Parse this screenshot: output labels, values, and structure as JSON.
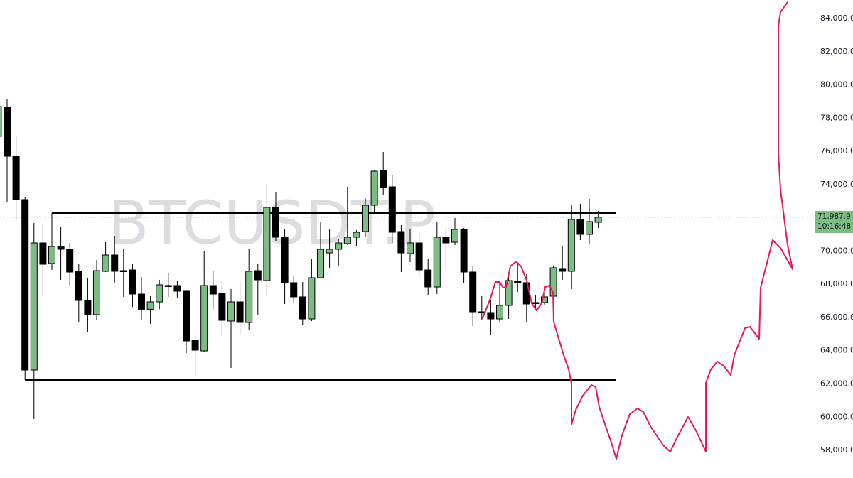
{
  "chart_data": {
    "type": "candlestick",
    "title": "",
    "watermark": "BTCUSDT.P",
    "ylim": [
      57000,
      85200
    ],
    "y_ticks": [
      "84,000.0",
      "82,000.0",
      "80,000.0",
      "78,000.0",
      "76,000.0",
      "74,000.0",
      "70,000.0",
      "68,000.0",
      "66,000.0",
      "64,000.0",
      "62,000.0",
      "60,000.0",
      "58,000.0"
    ],
    "y_tick_values": [
      84000,
      82000,
      80000,
      78000,
      76000,
      74000,
      70000,
      68000,
      66000,
      64000,
      62000,
      60000,
      58000
    ],
    "last_price": {
      "value": 71987.9,
      "label": "71,987.9",
      "countdown": "10:16:48"
    },
    "grid": false,
    "colors": {
      "up": "#7cbd83",
      "down": "#000000",
      "projection": "#e8185a",
      "last_price": "#7cbd83",
      "level_line": "#000000"
    },
    "levels": [
      {
        "price": 72241,
        "from_candle": 6,
        "to_candle": 69
      },
      {
        "price": 62192,
        "from_candle": 3,
        "to_candle": 69
      }
    ],
    "candles": [
      [
        76859,
        78869,
        76731,
        78655
      ],
      [
        78612,
        79083,
        72883,
        75662
      ],
      [
        75662,
        76902,
        71813,
        73054
      ],
      [
        73054,
        73225,
        62192,
        62791
      ],
      [
        62791,
        71642,
        59841,
        70445
      ],
      [
        70445,
        71599,
        67196,
        69162
      ],
      [
        69205,
        72241,
        68820,
        70231
      ],
      [
        70231,
        71386,
        68222,
        70060
      ],
      [
        70060,
        70445,
        67880,
        68692
      ],
      [
        68735,
        69205,
        65656,
        66982
      ],
      [
        66982,
        68307,
        65057,
        66127
      ],
      [
        66127,
        69419,
        65784,
        68777
      ],
      [
        68735,
        70488,
        68692,
        69718
      ],
      [
        69718,
        70873,
        68008,
        68735
      ],
      [
        68777,
        70060,
        67196,
        68735
      ],
      [
        68820,
        69162,
        66582,
        67366
      ],
      [
        67366,
        68393,
        65784,
        66451
      ],
      [
        66451,
        67238,
        65571,
        66896
      ],
      [
        66896,
        68222,
        66451,
        67922
      ],
      [
        67880,
        68649,
        67196,
        67837
      ],
      [
        67880,
        68136,
        67110,
        67538
      ],
      [
        67538,
        67580,
        63817,
        64544
      ],
      [
        64587,
        64929,
        62364,
        63988
      ],
      [
        63945,
        69932,
        63860,
        67880
      ],
      [
        67880,
        68777,
        66451,
        67366
      ],
      [
        67409,
        68136,
        64843,
        65784
      ],
      [
        65741,
        67666,
        62920,
        66896
      ],
      [
        66896,
        68136,
        64972,
        65656
      ],
      [
        65656,
        70060,
        65185,
        68735
      ],
      [
        68777,
        69162,
        66127,
        68222
      ],
      [
        68179,
        73951,
        67324,
        72583
      ],
      [
        72583,
        73481,
        70573,
        70787
      ],
      [
        70787,
        71300,
        66768,
        68051
      ],
      [
        68051,
        68478,
        66811,
        67196
      ],
      [
        67196,
        68093,
        65527,
        65870
      ],
      [
        65870,
        69462,
        65741,
        68350
      ],
      [
        68350,
        71685,
        68307,
        70060
      ],
      [
        69846,
        71258,
        68906,
        70060
      ],
      [
        70060,
        70702,
        69077,
        70445
      ],
      [
        70402,
        73823,
        70317,
        70787
      ],
      [
        70787,
        71215,
        70274,
        71086
      ],
      [
        71129,
        73138,
        70787,
        72711
      ],
      [
        72711,
        74807,
        72241,
        74764
      ],
      [
        74807,
        75918,
        73311,
        73780
      ],
      [
        73823,
        74550,
        70445,
        71086
      ],
      [
        71129,
        71514,
        68692,
        69846
      ],
      [
        69803,
        71300,
        69290,
        70445
      ],
      [
        70445,
        71001,
        68435,
        68820
      ],
      [
        68820,
        69504,
        67281,
        67794
      ],
      [
        67794,
        71728,
        67366,
        70787
      ],
      [
        70787,
        71300,
        68863,
        70445
      ],
      [
        70488,
        71942,
        70317,
        71258
      ],
      [
        71258,
        71343,
        68051,
        68692
      ],
      [
        68692,
        69077,
        65442,
        66297
      ],
      [
        66297,
        67238,
        65827,
        66255
      ],
      [
        66255,
        67024,
        64886,
        65870
      ],
      [
        65870,
        68051,
        65699,
        66682
      ],
      [
        66682,
        68478,
        65870,
        68179
      ],
      [
        68136,
        69248,
        67495,
        68051
      ],
      [
        68051,
        68564,
        65656,
        66768
      ],
      [
        66854,
        67281,
        66426,
        66811
      ],
      [
        66854,
        67623,
        66682,
        67196
      ],
      [
        67238,
        69034,
        66768,
        68949
      ],
      [
        68863,
        70274,
        68222,
        68735
      ],
      [
        68735,
        72711,
        67666,
        71856
      ],
      [
        71856,
        72797,
        70616,
        70958
      ],
      [
        70958,
        73096,
        70402,
        71728
      ],
      [
        71685,
        72369,
        71343,
        71988
      ]
    ]
  }
}
